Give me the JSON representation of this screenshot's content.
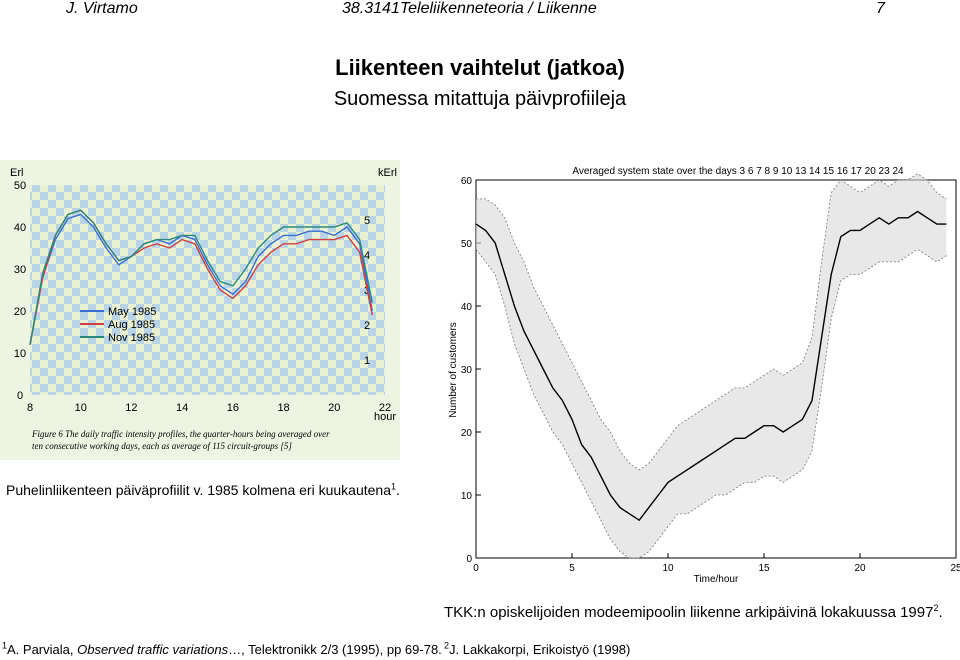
{
  "header": {
    "author": "J. Virtamo",
    "course": "38.3141Teleliikenneteoria / Liikenne",
    "page": "7"
  },
  "title": "Liikenteen vaihtelut (jatkoa)",
  "subtitle": "Suomessa mitattuja päivprofiileja",
  "left_figure": {
    "left_axis_unit": "Erl",
    "right_axis_unit": "kErl",
    "x_unit": "hour",
    "caption_lines": [
      "Figure 6  The daily traffic intensity profiles, the quarter-hours being averaged over",
      "ten consecutive working days, each as average of 115 circuit-groups [5]"
    ],
    "legend": [
      "May 1985",
      "Aug 1985",
      "Nov 1985"
    ]
  },
  "left_caption": {
    "text": "Puhelinliikenteen päiväprofiilit v. 1985 kolmena eri kuukautena",
    "sup": "1",
    "end": "."
  },
  "right_caption": {
    "text": "TKK:n opiskelijoiden modeemipoolin liikenne arkipäivinä lokakuussa 1997",
    "sup": "2",
    "end": "."
  },
  "footnote_left": {
    "sup": "1",
    "prefix": "A. Parviala, ",
    "italic": "Observed traffic variations",
    "suffix": "…, Telektronikk 2/3 (1995), pp 69-78."
  },
  "footnote_right": {
    "sup": "2",
    "text": "J. Lakkakorpi, Erikoistyö (1998)"
  },
  "chart_data": [
    {
      "type": "line",
      "title": "",
      "xlabel": "hour",
      "ylabel": "Erl",
      "y2label": "kErl",
      "xlim": [
        8,
        22
      ],
      "ylim": [
        0,
        50
      ],
      "y2lim": [
        0,
        6
      ],
      "x_ticks": [
        8,
        10,
        12,
        14,
        16,
        18,
        20,
        22
      ],
      "y_ticks": [
        0,
        10,
        20,
        30,
        40,
        50
      ],
      "y2_ticks": [
        1,
        2,
        3,
        4,
        5
      ],
      "x": [
        8,
        8.5,
        9,
        9.5,
        10,
        10.5,
        11,
        11.5,
        12,
        12.5,
        13,
        13.5,
        14,
        14.5,
        15,
        15.5,
        16,
        16.5,
        17,
        17.5,
        18,
        18.5,
        19,
        19.5,
        20,
        20.5,
        21,
        21.5
      ],
      "series": [
        {
          "name": "May 1985",
          "color": "#3a6ed0",
          "values": [
            12,
            28,
            37,
            42,
            43,
            40,
            35,
            31,
            33,
            36,
            37,
            36,
            38,
            37,
            31,
            26,
            24,
            27,
            33,
            36,
            38,
            38,
            39,
            39,
            38,
            40,
            36,
            20
          ]
        },
        {
          "name": "Aug 1985",
          "color": "#d04040",
          "values": [
            12,
            28,
            38,
            43,
            44,
            41,
            36,
            32,
            33,
            35,
            36,
            35,
            37,
            36,
            30,
            25,
            23,
            26,
            31,
            34,
            36,
            36,
            37,
            37,
            37,
            38,
            34,
            19
          ]
        },
        {
          "name": "Nov 1985",
          "color": "#2a8a7a",
          "values": [
            12,
            29,
            38,
            43,
            44,
            41,
            36,
            32,
            33,
            36,
            37,
            37,
            38,
            38,
            32,
            27,
            26,
            30,
            35,
            38,
            40,
            40,
            40,
            40,
            40,
            41,
            37,
            22
          ]
        }
      ]
    },
    {
      "type": "line",
      "title": "Averaged system state over the days 3 6 7 8 9 10 13 14 15 16 17 20 23 24",
      "xlabel": "Time/hour",
      "ylabel": "Number of customers",
      "xlim": [
        0,
        25
      ],
      "ylim": [
        0,
        60
      ],
      "x_ticks": [
        0,
        5,
        10,
        15,
        20,
        25
      ],
      "y_ticks": [
        0,
        10,
        20,
        30,
        40,
        50,
        60
      ],
      "x": [
        0,
        0.5,
        1,
        1.5,
        2,
        2.5,
        3,
        3.5,
        4,
        4.5,
        5,
        5.5,
        6,
        6.5,
        7,
        7.5,
        8,
        8.5,
        9,
        9.5,
        10,
        10.5,
        11,
        11.5,
        12,
        12.5,
        13,
        13.5,
        14,
        14.5,
        15,
        15.5,
        16,
        16.5,
        17,
        17.5,
        18,
        18.5,
        19,
        19.5,
        20,
        20.5,
        21,
        21.5,
        22,
        22.5,
        23,
        23.5,
        24,
        24.5
      ],
      "averaged": [
        53,
        52,
        50,
        45,
        40,
        36,
        33,
        30,
        27,
        25,
        22,
        18,
        16,
        13,
        10,
        8,
        7,
        6,
        8,
        10,
        12,
        13,
        14,
        15,
        16,
        17,
        18,
        19,
        19,
        20,
        21,
        21,
        20,
        21,
        22,
        25,
        35,
        45,
        51,
        52,
        52,
        53,
        54,
        53,
        54,
        54,
        55,
        54,
        53,
        53
      ],
      "upper_band": [
        57,
        57,
        56,
        54,
        50,
        47,
        43,
        40,
        37,
        34,
        31,
        28,
        25,
        22,
        20,
        17,
        15,
        14,
        15,
        17,
        19,
        21,
        22,
        23,
        24,
        25,
        26,
        27,
        27,
        28,
        29,
        30,
        29,
        30,
        31,
        35,
        47,
        58,
        60,
        59,
        58,
        59,
        60,
        59,
        60,
        60,
        61,
        60,
        58,
        57
      ],
      "lower_band": [
        49,
        47,
        45,
        40,
        34,
        30,
        26,
        23,
        20,
        18,
        15,
        12,
        9,
        6,
        3,
        1,
        0,
        0,
        1,
        3,
        5,
        7,
        7,
        8,
        9,
        10,
        10,
        11,
        12,
        12,
        13,
        13,
        12,
        13,
        14,
        17,
        27,
        38,
        44,
        45,
        45,
        46,
        47,
        47,
        47,
        48,
        49,
        48,
        47,
        48
      ]
    }
  ]
}
